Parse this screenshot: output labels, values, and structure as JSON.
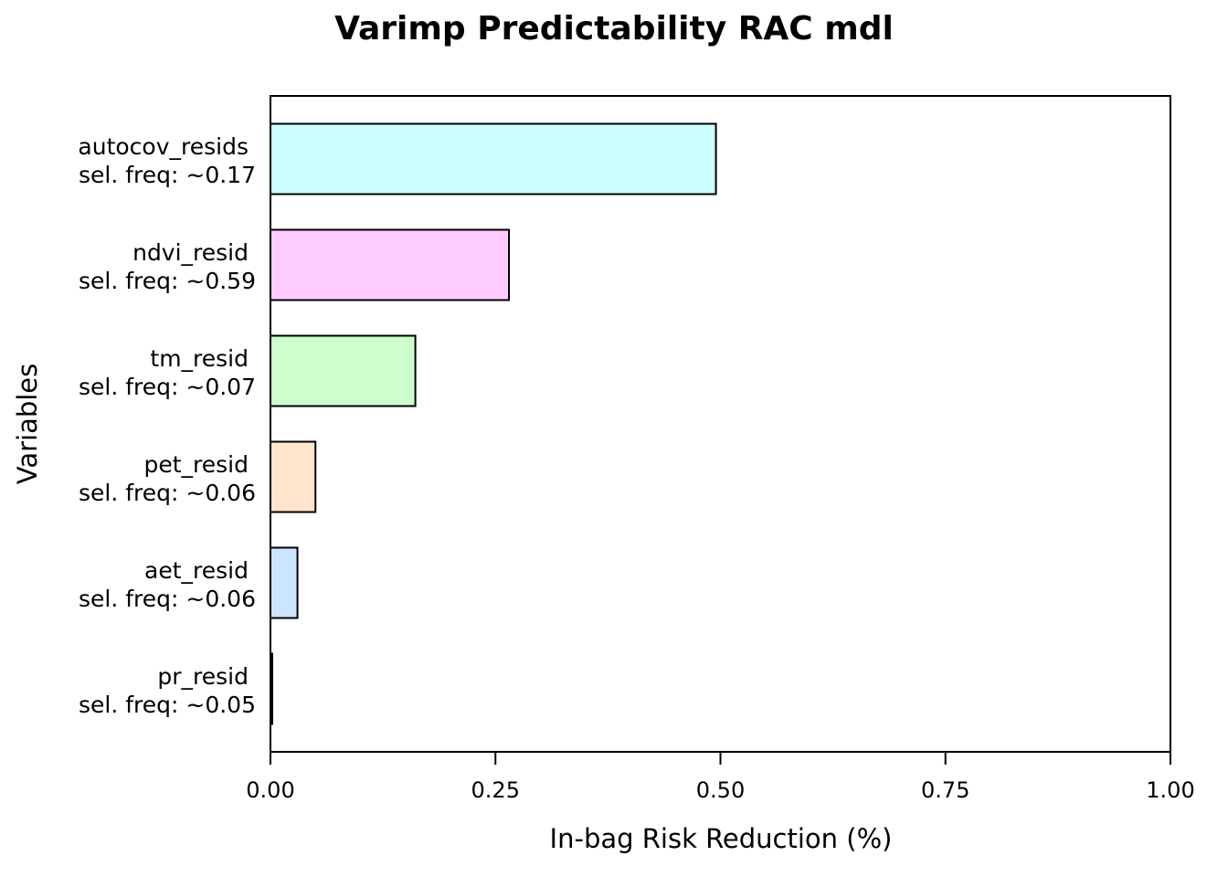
{
  "chart_data": {
    "type": "bar",
    "orientation": "horizontal",
    "title": "Varimp Predictability RAC mdl",
    "xlabel": "In-bag Risk Reduction (%)",
    "ylabel": "Variables",
    "xlim": [
      0,
      1
    ],
    "x_ticks": [
      "0.00",
      "0.25",
      "0.50",
      "0.75",
      "1.00"
    ],
    "grid": false,
    "categories": [
      {
        "name": "autocov_resids",
        "freq_label": "sel. freq: ~0.17",
        "value": 0.495,
        "color": "#ccffff"
      },
      {
        "name": "ndvi_resid",
        "freq_label": "sel. freq: ~0.59",
        "value": 0.265,
        "color": "#ffccff"
      },
      {
        "name": "tm_resid",
        "freq_label": "sel. freq: ~0.07",
        "value": 0.161,
        "color": "#ccffcc"
      },
      {
        "name": "pet_resid",
        "freq_label": "sel. freq: ~0.06",
        "value": 0.05,
        "color": "#ffe5cc"
      },
      {
        "name": "aet_resid",
        "freq_label": "sel. freq: ~0.06",
        "value": 0.03,
        "color": "#cce5ff"
      },
      {
        "name": "pr_resid",
        "freq_label": "sel. freq: ~0.05",
        "value": 0.002,
        "color": "#ffcccc"
      }
    ]
  }
}
